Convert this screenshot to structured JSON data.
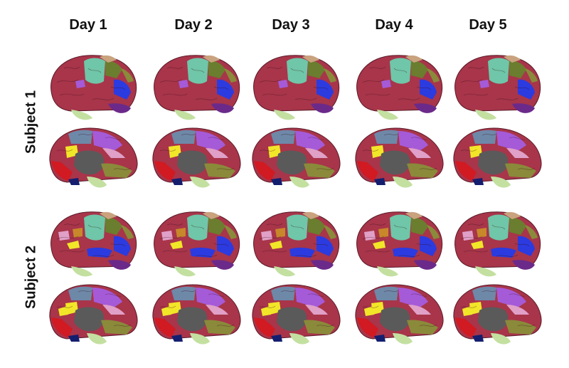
{
  "columns": [
    "Day 1",
    "Day 2",
    "Day 3",
    "Day 4",
    "Day 5"
  ],
  "subjects": [
    "Subject 1",
    "Subject 2"
  ],
  "colors": {
    "cortex_red": "#a8354a",
    "teal": "#6fc6a8",
    "tan": "#c9a27e",
    "olive": "#6b7d2e",
    "blue": "#2b3be0",
    "purple": "#6b2a8a",
    "pale_green": "#c3e0a0",
    "dark_gray": "#5a5a5a",
    "yellow": "#f2e628",
    "red": "#d11a22",
    "steel_blue": "#6e88a8",
    "violet": "#a55ad8",
    "pink": "#e0a0c8",
    "navy": "#141e6e",
    "orange": "#c8872a",
    "olive_green": "#8a8a3a"
  }
}
